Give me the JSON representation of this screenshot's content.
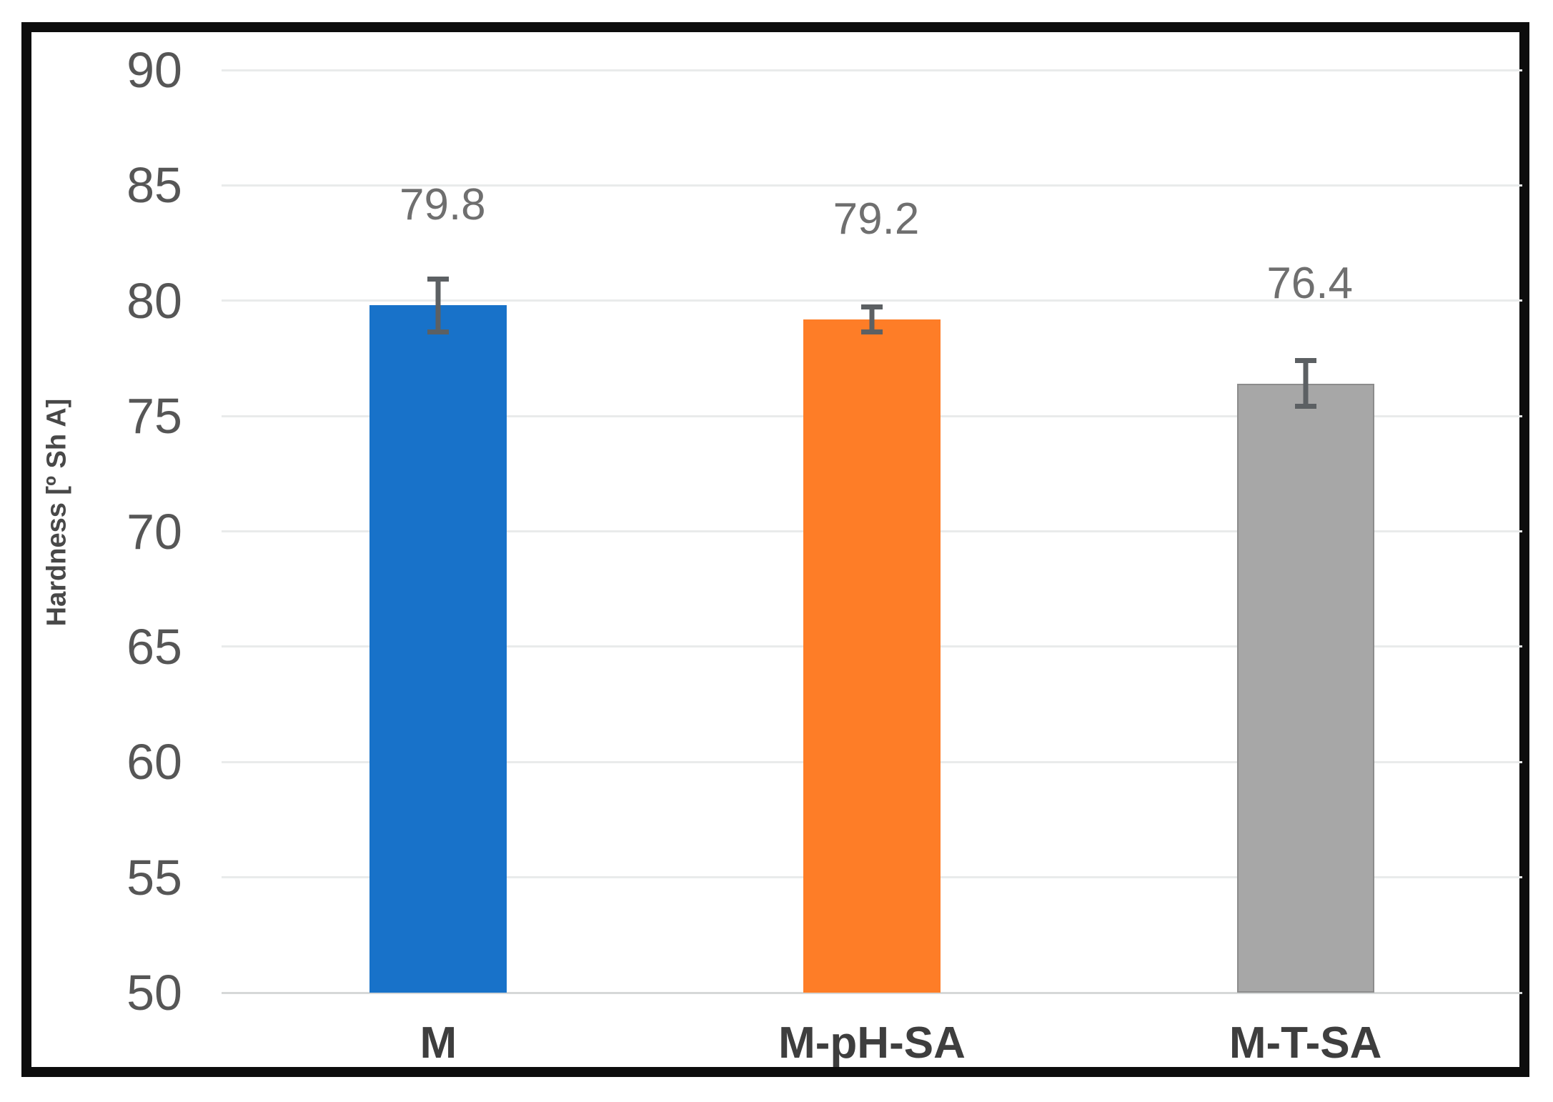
{
  "chart_data": {
    "type": "bar",
    "categories": [
      "M",
      "M-pH-SA",
      "M-T-SA"
    ],
    "values": [
      79.8,
      79.2,
      76.4
    ],
    "data_labels": [
      "79.8",
      "79.2",
      "76.4"
    ],
    "errors": [
      1.25,
      0.65,
      1.1
    ],
    "title": "",
    "xlabel": "",
    "ylabel": "Hardness [º Sh A]",
    "ylim": [
      50,
      90
    ],
    "ytick_step": 5,
    "yticks": [
      "50",
      "55",
      "60",
      "65",
      "70",
      "75",
      "80",
      "85",
      "90"
    ],
    "grid": true,
    "legend_position": "none",
    "bar_colors": [
      "#1872c9",
      "#fe7d27",
      "#a7a7a7"
    ],
    "bar_border_colors": [
      "#1872c9",
      "#fe7d27",
      "#8c8c8c"
    ],
    "error_bar_color": "#5c6063",
    "gridline_color": "#e9ebeb",
    "baseline_color": "#d6d8d8",
    "frame_border_color": "#0d0d0d"
  }
}
